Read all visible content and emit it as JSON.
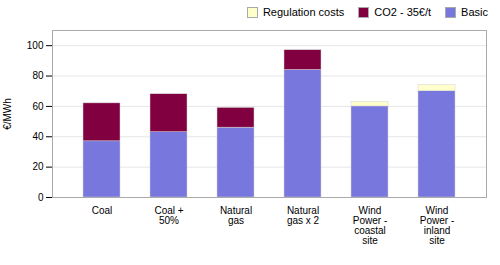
{
  "chart_data": {
    "type": "bar",
    "stacked": true,
    "categories": [
      "Coal",
      "Coal +\n50%",
      "Natural\ngas",
      "Natural\ngas x 2",
      "Wind\nPower -\ncoastal\nsite",
      "Wind\nPower -\ninland\nsite"
    ],
    "series": [
      {
        "name": "Basic",
        "color": "#7777dd",
        "values": [
          37,
          43,
          46,
          84,
          60,
          70
        ]
      },
      {
        "name": "CO2 - 35€/t",
        "color": "#800040",
        "values": [
          25,
          25,
          13,
          13,
          0,
          0
        ]
      },
      {
        "name": "Regulation costs",
        "color": "#ffffcc",
        "values": [
          0,
          0,
          0,
          0,
          3,
          4
        ]
      }
    ],
    "ylabel": "€/MWh",
    "ylim": [
      0,
      110
    ],
    "yticks": [
      0,
      20,
      40,
      60,
      80,
      100
    ],
    "grid": true,
    "legend": "upper right"
  }
}
